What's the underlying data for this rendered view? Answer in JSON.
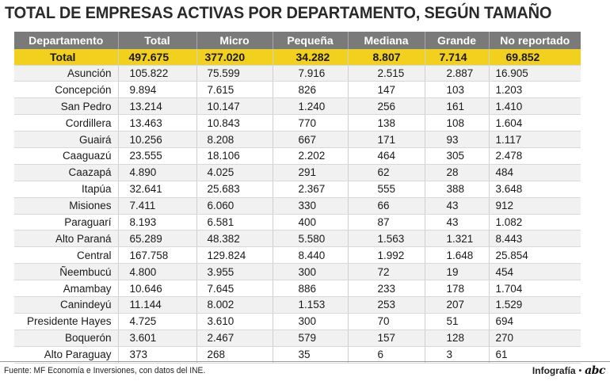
{
  "title": "TOTAL DE EMPRESAS ACTIVAS POR DEPARTAMENTO, SEGÚN TAMAÑO",
  "source": "Fuente: MF Economía e Inversiones, con datos del INE.",
  "credit": {
    "label": "Infografía",
    "separator": "•",
    "logo": "abc"
  },
  "colors": {
    "header_bg": "#7a7a7a",
    "total_bg": "#f2d01e",
    "stripe": "#f1f1f1"
  },
  "chart_data": {
    "type": "table",
    "title": "TOTAL DE EMPRESAS ACTIVAS POR DEPARTAMENTO, SEGÚN TAMAÑO",
    "columns": [
      "Departamento",
      "Total",
      "Micro",
      "Pequeña",
      "Mediana",
      "Grande",
      "No reportado"
    ],
    "total": [
      "Total",
      "497.675",
      "377.020",
      "34.282",
      "8.807",
      "7.714",
      "69.852"
    ],
    "rows": [
      [
        "Asunción",
        "105.822",
        "75.599",
        "7.916",
        "2.515",
        "2.887",
        "16.905"
      ],
      [
        "Concepción",
        "9.894",
        "7.615",
        "826",
        "147",
        "103",
        "1.203"
      ],
      [
        "San Pedro",
        "13.214",
        "10.147",
        "1.240",
        "256",
        "161",
        "1.410"
      ],
      [
        "Cordillera",
        "13.463",
        "10.843",
        "770",
        "138",
        "108",
        "1.604"
      ],
      [
        "Guairá",
        "10.256",
        "8.208",
        "667",
        "171",
        "93",
        "1.117"
      ],
      [
        "Caaguazú",
        "23.555",
        "18.106",
        "2.202",
        "464",
        "305",
        "2.478"
      ],
      [
        "Caazapá",
        "4.890",
        "4.025",
        "291",
        "62",
        "28",
        "484"
      ],
      [
        "Itapúa",
        "32.641",
        "25.683",
        "2.367",
        "555",
        "388",
        "3.648"
      ],
      [
        "Misiones",
        "7.411",
        "6.060",
        "330",
        "66",
        "43",
        "912"
      ],
      [
        "Paraguarí",
        "8.193",
        "6.581",
        "400",
        "87",
        "43",
        "1.082"
      ],
      [
        "Alto Paraná",
        "65.289",
        "48.382",
        "5.580",
        "1.563",
        "1.321",
        "8.443"
      ],
      [
        "Central",
        "167.758",
        "129.824",
        "8.440",
        "1.992",
        "1.648",
        "25.854"
      ],
      [
        "Ñeembucú",
        "4.800",
        "3.955",
        "300",
        "72",
        "19",
        "454"
      ],
      [
        "Amambay",
        "10.646",
        "7.645",
        "886",
        "233",
        "178",
        "1.704"
      ],
      [
        "Canindeyú",
        "11.144",
        "8.002",
        "1.153",
        "253",
        "207",
        "1.529"
      ],
      [
        "Presidente Hayes",
        "4.725",
        "3.610",
        "300",
        "70",
        "51",
        "694"
      ],
      [
        "Boquerón",
        "3.601",
        "2.467",
        "579",
        "157",
        "128",
        "270"
      ],
      [
        "Alto Paraguay",
        "373",
        "268",
        "35",
        "6",
        "3",
        "61"
      ]
    ]
  }
}
